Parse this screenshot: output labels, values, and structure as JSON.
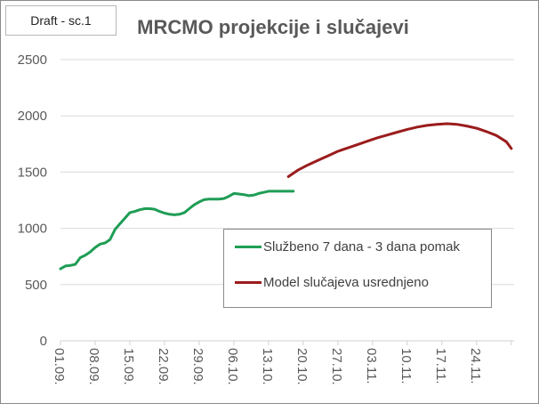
{
  "draft_label": "Draft - sc.1",
  "chart_data": {
    "type": "line",
    "title": "MRCMO projekcije i slučajevi",
    "xlabel": "",
    "ylabel": "",
    "ylim": [
      0,
      2500
    ],
    "yticks": [
      "0",
      "500",
      "1000",
      "1500",
      "2000",
      "2500"
    ],
    "xticks": [
      "01.09.",
      "08.09.",
      "15.09.",
      "22.09.",
      "29.09.",
      "06.10.",
      "13.10.",
      "20.10.",
      "27.10.",
      "03.11.",
      "10.11.",
      "17.11.",
      "24.11."
    ],
    "grid": "horizontal",
    "legend_position": "inside-right",
    "series": [
      {
        "name": "Službeno 7 dana - 3 dana pomak",
        "color": "#1f9d55",
        "x_day_offset": [
          0,
          1,
          2,
          3,
          4,
          5,
          6,
          7,
          8,
          9,
          10,
          11,
          12,
          13,
          14,
          15,
          16,
          17,
          18,
          19,
          20,
          21,
          22,
          23,
          24,
          25,
          26,
          27,
          28,
          29,
          30,
          31,
          32,
          33,
          34,
          35,
          36,
          37,
          38,
          39,
          40,
          41,
          42,
          43,
          44,
          45,
          46,
          47
        ],
        "values": [
          640,
          665,
          670,
          680,
          740,
          760,
          790,
          830,
          860,
          870,
          900,
          990,
          1040,
          1090,
          1140,
          1150,
          1165,
          1175,
          1175,
          1170,
          1150,
          1135,
          1125,
          1120,
          1125,
          1140,
          1175,
          1210,
          1235,
          1255,
          1260,
          1260,
          1260,
          1265,
          1285,
          1310,
          1305,
          1300,
          1290,
          1295,
          1310,
          1320,
          1330,
          1330,
          1330,
          1330,
          1330,
          1330
        ]
      },
      {
        "name": "Model slučajeva usrednjeno",
        "color": "#9b1c1c",
        "x_day_offset": [
          46,
          48,
          50,
          52,
          54,
          56,
          58,
          60,
          62,
          64,
          66,
          68,
          70,
          72,
          74,
          76,
          78,
          80,
          82,
          84,
          86,
          88,
          90,
          91
        ],
        "values": [
          1460,
          1520,
          1565,
          1605,
          1645,
          1685,
          1715,
          1745,
          1775,
          1805,
          1830,
          1855,
          1880,
          1900,
          1915,
          1925,
          1930,
          1925,
          1910,
          1890,
          1860,
          1825,
          1770,
          1710
        ]
      }
    ]
  }
}
